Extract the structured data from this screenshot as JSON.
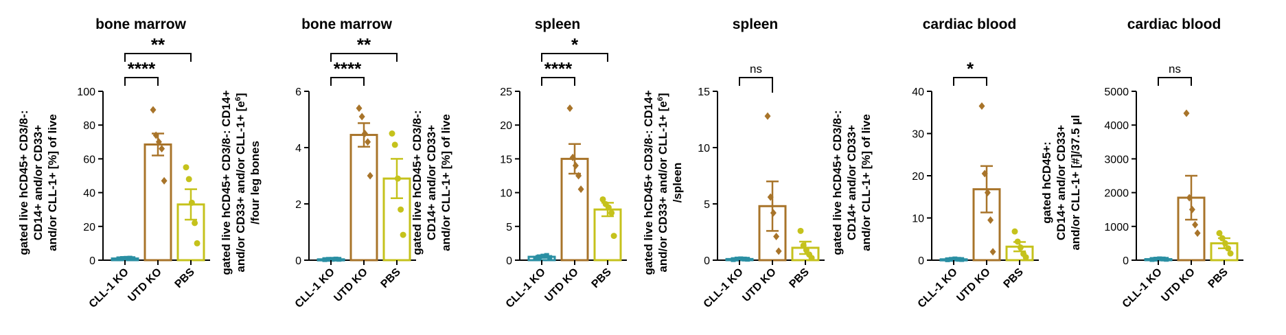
{
  "colors": {
    "cll1": "#2a8fa3",
    "utd": "#a8742a",
    "pbs": "#c5c21c",
    "axis": "#000000"
  },
  "chart_data": [
    {
      "type": "bar",
      "title": "bone marrow",
      "ylabel": [
        "gated live hCD45+ CD3/8-:",
        "CD14+ and/or  CD33+",
        "and/or CLL-1+ [%] of live"
      ],
      "ylabel_sup": [
        null,
        null,
        null
      ],
      "categories": [
        "CLL-1 KO",
        "UTD KO",
        "PBS"
      ],
      "ylim": [
        0,
        100
      ],
      "yticks": [
        0,
        20,
        40,
        60,
        80,
        100
      ],
      "ytick_labels": [
        "0",
        "20",
        "40",
        "60",
        "80",
        "100"
      ],
      "means": [
        1,
        68.5,
        33
      ],
      "sem": [
        0.2,
        6.5,
        9
      ],
      "points": [
        [
          0.8,
          1.0,
          1.1,
          1.2,
          0.9
        ],
        [
          89,
          74,
          70,
          66,
          47
        ],
        [
          55,
          48,
          34,
          22,
          10
        ]
      ],
      "brackets": [
        {
          "from": 0,
          "to": 1,
          "level": 0,
          "label": "****"
        },
        {
          "from": 0,
          "to": 2,
          "level": 1,
          "label": "**"
        }
      ]
    },
    {
      "type": "bar",
      "title": "bone marrow",
      "ylabel": [
        "gated live hCD45+  CD3/8-: CD14+",
        "and/or CD33+ and/or CLL-1+ [e",
        "/four leg bones"
      ],
      "ylabel_sup": [
        null,
        {
          "base": "and/or CD33+ and/or CLL-1+ [e",
          "sup": "6",
          "tail": "]"
        },
        null
      ],
      "categories": [
        "CLL-1 KO",
        "UTD KO",
        "PBS"
      ],
      "ylim": [
        0,
        6
      ],
      "yticks": [
        0,
        2,
        4,
        6
      ],
      "ytick_labels": [
        "0",
        "2",
        "4",
        "6"
      ],
      "means": [
        0.03,
        4.45,
        2.9
      ],
      "sem": [
        0.01,
        0.42,
        0.7
      ],
      "points": [
        [
          0.02,
          0.03,
          0.03,
          0.04,
          0.03
        ],
        [
          5.4,
          5.1,
          4.5,
          4.2,
          3.0
        ],
        [
          4.5,
          4.1,
          2.9,
          1.8,
          0.9
        ]
      ],
      "brackets": [
        {
          "from": 0,
          "to": 1,
          "level": 0,
          "label": "****"
        },
        {
          "from": 0,
          "to": 2,
          "level": 1,
          "label": "**"
        }
      ]
    },
    {
      "type": "bar",
      "title": "spleen",
      "ylabel": [
        "gated live hCD45+ CD3/8-:",
        "CD14+ and/or  CD33+",
        "and/or CLL-1+ [%] of live"
      ],
      "ylabel_sup": [
        null,
        null,
        null
      ],
      "categories": [
        "CLL-1 KO",
        "UTD KO",
        "PBS"
      ],
      "ylim": [
        0,
        25
      ],
      "yticks": [
        0,
        5,
        10,
        15,
        20,
        25
      ],
      "ytick_labels": [
        "0",
        "5",
        "10",
        "15",
        "20",
        "25"
      ],
      "means": [
        0.5,
        15,
        7.5
      ],
      "sem": [
        0.15,
        2.2,
        1.0
      ],
      "points": [
        [
          0.3,
          0.5,
          0.6,
          0.7,
          0.4
        ],
        [
          22.5,
          15.2,
          14,
          12.5,
          10.5
        ],
        [
          9,
          8.3,
          7.8,
          7.0,
          3.6
        ]
      ],
      "brackets": [
        {
          "from": 0,
          "to": 1,
          "level": 0,
          "label": "****"
        },
        {
          "from": 0,
          "to": 2,
          "level": 1,
          "label": "*"
        }
      ]
    },
    {
      "type": "bar",
      "title": "spleen",
      "ylabel": [
        "gated live hCD45+ CD3/8-: CD14+",
        "and/or CD33+ and/or CLL-1+ [e",
        "/spleen"
      ],
      "ylabel_sup": [
        null,
        {
          "base": "and/or CD33+ and/or CLL-1+ [e",
          "sup": "6",
          "tail": "]"
        },
        null
      ],
      "categories": [
        "CLL-1 KO",
        "UTD KO",
        "PBS"
      ],
      "ylim": [
        0,
        15
      ],
      "yticks": [
        0,
        5,
        10,
        15
      ],
      "ytick_labels": [
        "0",
        "5",
        "10",
        "15"
      ],
      "means": [
        0.1,
        4.8,
        1.1
      ],
      "sem": [
        0.03,
        2.2,
        0.55
      ],
      "points": [
        [
          0.05,
          0.1,
          0.12,
          0.1,
          0.08
        ],
        [
          12.8,
          5.6,
          4.2,
          2.1,
          0.8
        ],
        [
          2.6,
          1.3,
          0.9,
          0.5,
          0.2
        ]
      ],
      "brackets": [
        {
          "from": 1,
          "to": 0,
          "level": 0,
          "label": "ns",
          "rightDrop": true
        }
      ]
    },
    {
      "type": "bar",
      "title": "cardiac blood",
      "ylabel": [
        "gated live hCD45+ CD3/8-:",
        "CD14+ and/or  CD33+",
        "and/or CLL-1+ [%] of live"
      ],
      "ylabel_sup": [
        null,
        null,
        null
      ],
      "categories": [
        "CLL-1 KO",
        "UTD KO",
        "PBS"
      ],
      "ylim": [
        0,
        40
      ],
      "yticks": [
        0,
        10,
        20,
        30,
        40
      ],
      "ytick_labels": [
        "0",
        "10",
        "20",
        "30",
        "40"
      ],
      "means": [
        0.2,
        16.8,
        3.2
      ],
      "sem": [
        0.05,
        5.5,
        1.1
      ],
      "points": [
        [
          0.1,
          0.2,
          0.3,
          0.2,
          0.15
        ],
        [
          36.5,
          20.5,
          16,
          9.5,
          2
        ],
        [
          6.8,
          4.4,
          3.0,
          1.5,
          0.7
        ]
      ],
      "brackets": [
        {
          "from": 0,
          "to": 1,
          "level": 0,
          "label": "*"
        }
      ]
    },
    {
      "type": "bar",
      "title": "cardiac blood",
      "ylabel": [
        "gated hCD45+:",
        "CD14+ and/or  CD33+",
        "and/or CLL-1+ [#]/37.5 µl"
      ],
      "ylabel_sup": [
        null,
        null,
        null
      ],
      "categories": [
        "CLL-1 KO",
        "UTD KO",
        "PBS"
      ],
      "ylim": [
        0,
        5000
      ],
      "yticks": [
        0,
        1000,
        2000,
        3000,
        4000,
        5000
      ],
      "ytick_labels": [
        "0",
        "1000",
        "2000",
        "3000",
        "4000",
        "5000"
      ],
      "means": [
        30,
        1850,
        500
      ],
      "sem": [
        8,
        650,
        150
      ],
      "points": [
        [
          20,
          30,
          40,
          35,
          25
        ],
        [
          4350,
          1850,
          1500,
          1050,
          800
        ],
        [
          800,
          650,
          500,
          350,
          200
        ]
      ],
      "brackets": [
        {
          "from": 0,
          "to": 1,
          "level": 0,
          "label": "ns"
        }
      ]
    }
  ]
}
